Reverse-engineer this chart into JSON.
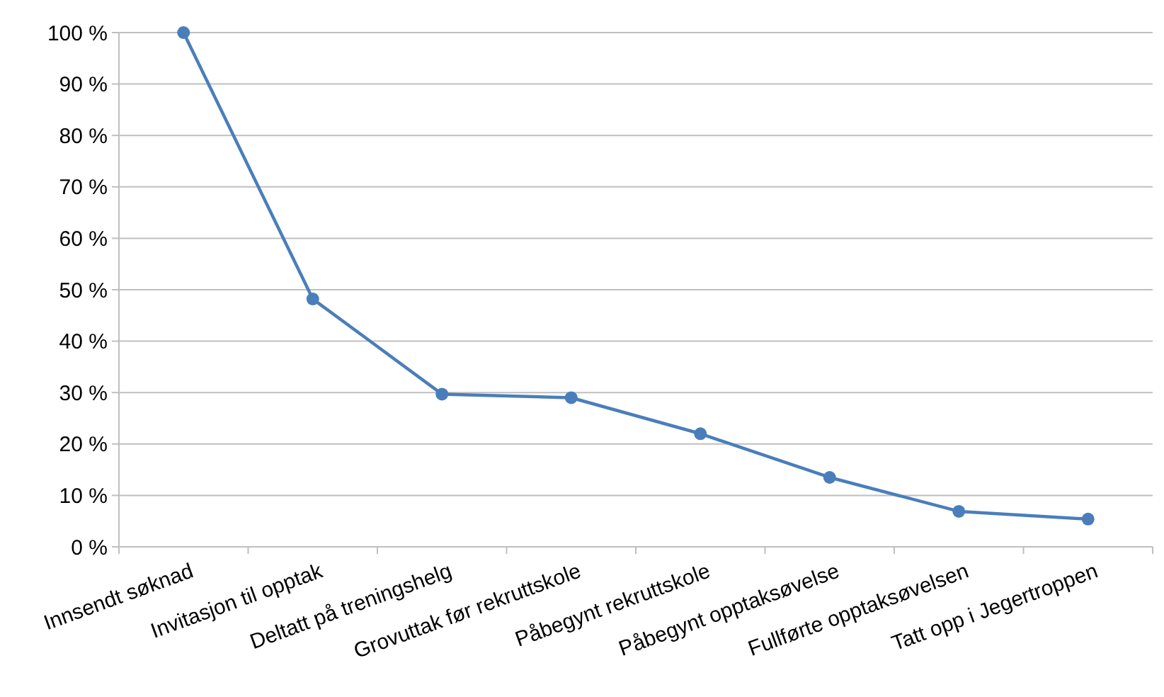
{
  "chart_data": {
    "type": "line",
    "categories": [
      "Innsendt søknad",
      "Invitasjon til opptak",
      "Deltatt på treningshelg",
      "Grovuttak før rekruttskole",
      "Påbegynt rekruttskole",
      "Påbegynt opptaksøvelse",
      "Fullførte opptaksøvelsen",
      "Tatt opp i Jegertroppen"
    ],
    "series": [
      {
        "color": "#4a7ebb",
        "values": [
          100,
          48.2,
          29.7,
          29,
          22,
          13.5,
          6.9,
          5.4
        ]
      }
    ],
    "ylim": [
      0,
      100
    ],
    "yticks": [
      {
        "value": 0,
        "label": "0 %"
      },
      {
        "value": 10,
        "label": "10 %"
      },
      {
        "value": 20,
        "label": "20 %"
      },
      {
        "value": 30,
        "label": "30 %"
      },
      {
        "value": 40,
        "label": "40 %"
      },
      {
        "value": 50,
        "label": "50 %"
      },
      {
        "value": 60,
        "label": "60 %"
      },
      {
        "value": 70,
        "label": "70 %"
      },
      {
        "value": 80,
        "label": "80 %"
      },
      {
        "value": 90,
        "label": "90 %"
      },
      {
        "value": 100,
        "label": "100 %"
      }
    ],
    "grid": "y",
    "marker": "circle",
    "line_style": "solid"
  }
}
